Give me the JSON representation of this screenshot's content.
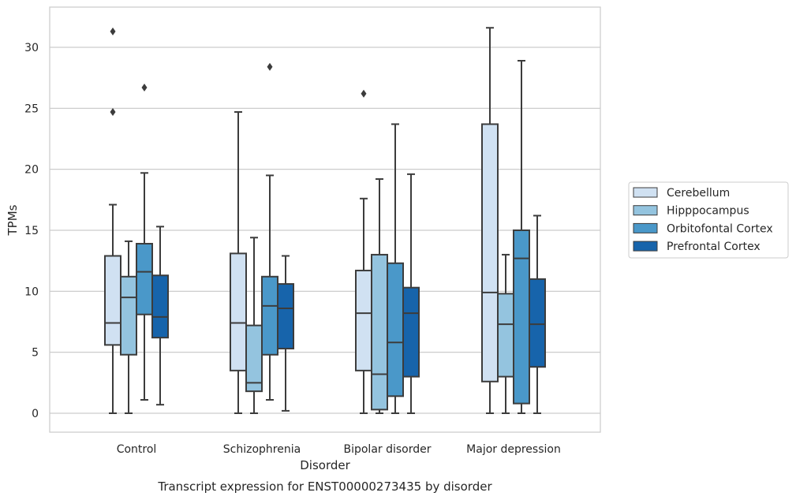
{
  "chart_data": {
    "type": "box",
    "title": "",
    "caption": "Transcript expression for ENST00000273435 by disorder",
    "xlabel": "Disorder",
    "ylabel": "TPMs",
    "ylim": [
      -1.5,
      33
    ],
    "yticks": [
      0,
      5,
      10,
      15,
      20,
      25,
      30
    ],
    "grid": "horizontal",
    "legend_position": "right",
    "categories": [
      "Control",
      "Schizophrenia",
      "Bipolar disorder",
      "Major depression"
    ],
    "series": [
      {
        "name": "Cerebellum",
        "color": "#d0e1f2",
        "boxes": [
          {
            "whisker_low": 0,
            "q1": 5.6,
            "median": 7.4,
            "q3": 12.9,
            "whisker_high": 17.1,
            "outliers": [
              24.7,
              31.3
            ]
          },
          {
            "whisker_low": 0,
            "q1": 3.5,
            "median": 7.4,
            "q3": 13.1,
            "whisker_high": 24.7,
            "outliers": []
          },
          {
            "whisker_low": 0,
            "q1": 3.5,
            "median": 8.2,
            "q3": 11.7,
            "whisker_high": 17.6,
            "outliers": [
              26.2
            ]
          },
          {
            "whisker_low": 0,
            "q1": 2.6,
            "median": 9.9,
            "q3": 23.7,
            "whisker_high": 31.6,
            "outliers": []
          }
        ]
      },
      {
        "name": "Hipppocampus",
        "color": "#94c4df",
        "boxes": [
          {
            "whisker_low": 0,
            "q1": 4.8,
            "median": 9.5,
            "q3": 11.2,
            "whisker_high": 14.1,
            "outliers": []
          },
          {
            "whisker_low": 0,
            "q1": 1.8,
            "median": 2.5,
            "q3": 7.2,
            "whisker_high": 14.4,
            "outliers": []
          },
          {
            "whisker_low": 0,
            "q1": 0.3,
            "median": 3.2,
            "q3": 13.0,
            "whisker_high": 19.2,
            "outliers": []
          },
          {
            "whisker_low": 0,
            "q1": 3.0,
            "median": 7.3,
            "q3": 9.8,
            "whisker_high": 13.0,
            "outliers": []
          }
        ]
      },
      {
        "name": "Orbitofontal Cortex",
        "color": "#4a98c9",
        "boxes": [
          {
            "whisker_low": 1.1,
            "q1": 8.1,
            "median": 11.6,
            "q3": 13.9,
            "whisker_high": 19.7,
            "outliers": [
              26.7
            ]
          },
          {
            "whisker_low": 1.1,
            "q1": 4.8,
            "median": 8.8,
            "q3": 11.2,
            "whisker_high": 19.5,
            "outliers": [
              28.4
            ]
          },
          {
            "whisker_low": 0,
            "q1": 1.4,
            "median": 5.8,
            "q3": 12.3,
            "whisker_high": 23.7,
            "outliers": []
          },
          {
            "whisker_low": 0,
            "q1": 0.8,
            "median": 12.7,
            "q3": 15.0,
            "whisker_high": 28.9,
            "outliers": []
          }
        ]
      },
      {
        "name": "Prefrontal Cortex",
        "color": "#1764ab",
        "boxes": [
          {
            "whisker_low": 0.7,
            "q1": 6.2,
            "median": 7.9,
            "q3": 11.3,
            "whisker_high": 15.3,
            "outliers": []
          },
          {
            "whisker_low": 0.2,
            "q1": 5.3,
            "median": 8.6,
            "q3": 10.6,
            "whisker_high": 12.9,
            "outliers": []
          },
          {
            "whisker_low": 0,
            "q1": 3.0,
            "median": 8.2,
            "q3": 10.3,
            "whisker_high": 19.6,
            "outliers": []
          },
          {
            "whisker_low": 0,
            "q1": 3.8,
            "median": 7.3,
            "q3": 11.0,
            "whisker_high": 16.2,
            "outliers": []
          }
        ]
      }
    ]
  }
}
